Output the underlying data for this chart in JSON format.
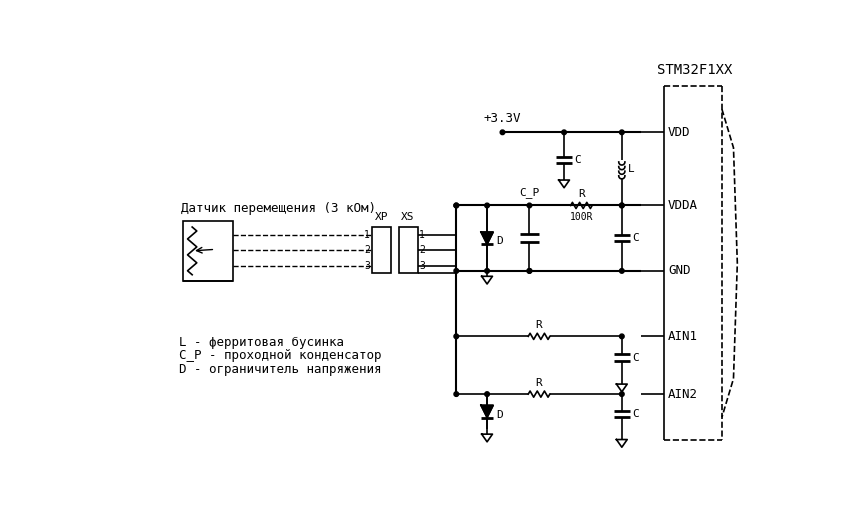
{
  "title": "STM32F1XX",
  "sensor_label": "Датчик перемещения (3 кОм)",
  "legend_lines": [
    "L - ферритовая бусинка",
    "C_P - проходной конденсатор",
    "D - ограничитель напряжения"
  ],
  "vdd_label": "VDD",
  "vdda_label": "VDDA",
  "gnd_label": "GND",
  "ain1_label": "AIN1",
  "ain2_label": "AIN2",
  "supply_label": "+3.3V",
  "r100_label": "100R",
  "r_label": "R",
  "xp_label": "XP",
  "xs_label": "XS",
  "cp_label": "C_P",
  "c_label": "C",
  "l_label": "L",
  "d_label": "D",
  "bg_color": "#ffffff",
  "line_color": "#000000",
  "font_size": 9,
  "title_font_size": 10
}
